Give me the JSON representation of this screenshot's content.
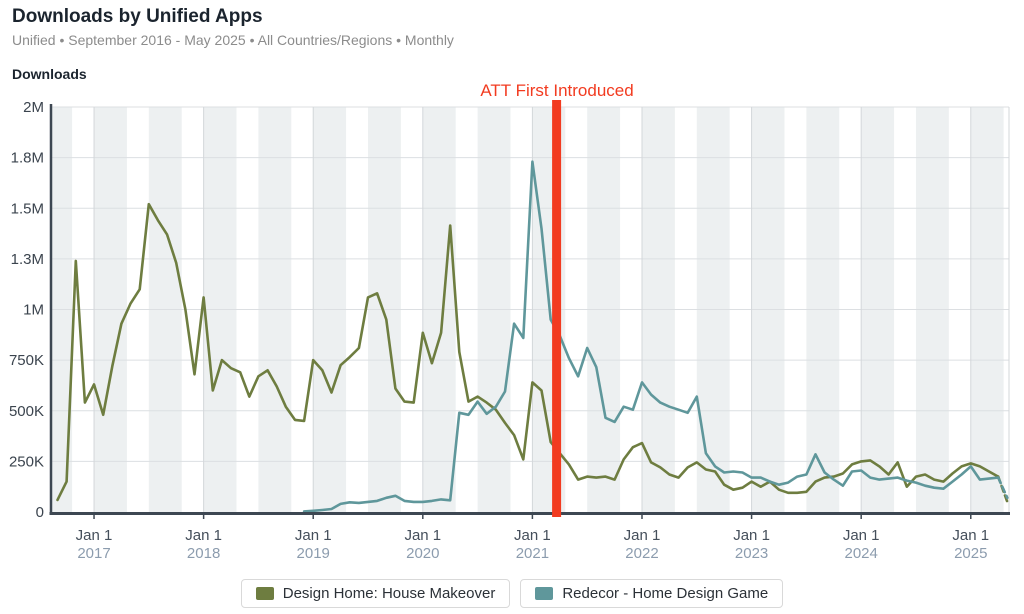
{
  "header": {
    "title": "Downloads by Unified Apps",
    "subtitle": "Unified • September 2016 - May 2025 • All Countries/Regions • Monthly"
  },
  "annotation": {
    "label": "ATT First Introduced",
    "color": "#f23b20",
    "month_index_from_sep_2016": 54.65
  },
  "legend": [
    {
      "label": "Design Home: House Makeover",
      "color": "#6e7d40"
    },
    {
      "label": "Redecor - Home Design Game",
      "color": "#5f979b"
    }
  ],
  "chart_data": {
    "type": "line",
    "title": "Downloads by Unified Apps",
    "xlabel": "",
    "ylabel": "Downloads",
    "x_start_month": "2016-09",
    "x_end_month": "2025-05",
    "x_interval": "monthly",
    "ylim_downloads": [
      0,
      2000000
    ],
    "grid": true,
    "legend_position": "bottom",
    "x_ticks": {
      "line1": "Jan 1",
      "years": [
        "2017",
        "2018",
        "2019",
        "2020",
        "2021",
        "2022",
        "2023",
        "2024",
        "2025"
      ]
    },
    "y_ticks": {
      "values_thousands": [
        0,
        250,
        500,
        750,
        1000,
        1250,
        1500,
        1750,
        2000
      ],
      "labels": [
        "0",
        "250K",
        "500K",
        "750K",
        "1M",
        "1.3M",
        "1.5M",
        "1.8M",
        "2M"
      ]
    },
    "values_unit": "downloads, thousands per month",
    "last_segment_dashed": true,
    "series": [
      {
        "name": "Design Home: House Makeover",
        "color": "#6e7d40",
        "values_thousands": [
          60,
          150,
          1240,
          540,
          630,
          480,
          720,
          930,
          1030,
          1100,
          1520,
          1440,
          1370,
          1230,
          1000,
          680,
          1060,
          600,
          750,
          710,
          690,
          570,
          670,
          700,
          620,
          520,
          455,
          450,
          750,
          700,
          590,
          725,
          765,
          810,
          1060,
          1080,
          950,
          610,
          545,
          540,
          885,
          735,
          885,
          1415,
          790,
          545,
          570,
          540,
          505,
          440,
          380,
          260,
          640,
          600,
          345,
          290,
          235,
          160,
          175,
          170,
          175,
          160,
          260,
          320,
          340,
          245,
          220,
          185,
          170,
          220,
          245,
          210,
          200,
          135,
          110,
          120,
          150,
          125,
          150,
          110,
          95,
          95,
          100,
          150,
          170,
          175,
          190,
          235,
          250,
          255,
          225,
          185,
          245,
          125,
          175,
          185,
          160,
          150,
          190,
          225,
          240,
          225,
          200,
          175,
          50
        ]
      },
      {
        "name": "Redecor - Home Design Game",
        "color": "#5f979b",
        "values_thousands": [
          null,
          null,
          null,
          null,
          null,
          null,
          null,
          null,
          null,
          null,
          null,
          null,
          null,
          null,
          null,
          null,
          null,
          null,
          null,
          null,
          null,
          null,
          null,
          null,
          null,
          null,
          null,
          3,
          6,
          10,
          15,
          40,
          48,
          45,
          50,
          55,
          70,
          80,
          55,
          50,
          50,
          55,
          62,
          58,
          490,
          480,
          545,
          485,
          520,
          595,
          930,
          860,
          1730,
          1400,
          950,
          870,
          760,
          670,
          810,
          715,
          465,
          445,
          520,
          505,
          640,
          580,
          540,
          520,
          505,
          490,
          570,
          290,
          225,
          195,
          200,
          195,
          170,
          170,
          150,
          135,
          145,
          175,
          185,
          285,
          195,
          160,
          130,
          200,
          205,
          170,
          160,
          165,
          170,
          155,
          145,
          130,
          120,
          115,
          150,
          185,
          225,
          160,
          165,
          170,
          70
        ]
      }
    ]
  },
  "colors": {
    "band": "#edf0f1",
    "grid": "#dcdfe2",
    "vgrid": "#d3d7da",
    "axis": "#3d4752",
    "tick_label": "#3b444e",
    "x_tick_line1": "#454f5b",
    "x_tick_year": "#8c9cae"
  }
}
